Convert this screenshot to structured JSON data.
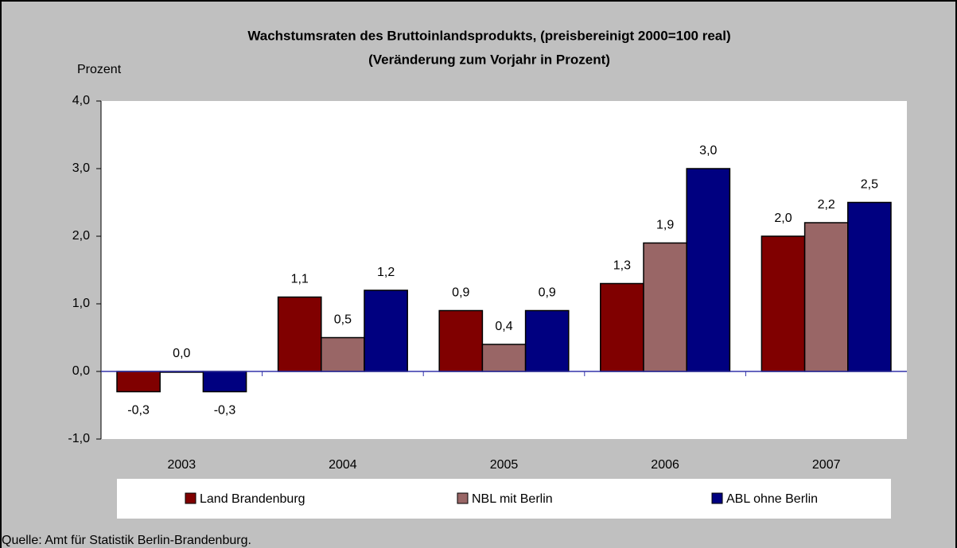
{
  "chart_data": {
    "type": "bar",
    "title": "Wachstumsraten des Bruttoinlandsprodukts, (preisbereinigt 2000=100 real)",
    "subtitle": "(Veränderung zum Vorjahr in Prozent)",
    "y_label": "Prozent",
    "source": "Quelle: Amt für Statistik Berlin-Brandenburg.",
    "categories": [
      "2003",
      "2004",
      "2005",
      "2006",
      "2007"
    ],
    "series": [
      {
        "name": "Land Brandenburg",
        "color": "#800000",
        "values": [
          -0.3,
          1.1,
          0.9,
          1.3,
          2.0
        ],
        "value_labels": [
          "-0,3",
          "1,1",
          "0,9",
          "1,3",
          "2,0"
        ]
      },
      {
        "name": "NBL mit Berlin",
        "color": "#996666",
        "values": [
          0.0,
          0.5,
          0.4,
          1.9,
          2.2
        ],
        "value_labels": [
          "0,0",
          "0,5",
          "0,4",
          "1,9",
          "2,2"
        ]
      },
      {
        "name": "ABL ohne Berlin",
        "color": "#000080",
        "values": [
          -0.3,
          1.2,
          0.9,
          3.0,
          2.5
        ],
        "value_labels": [
          "-0,3",
          "1,2",
          "0,9",
          "3,0",
          "2,5"
        ]
      }
    ],
    "ylim": [
      -1,
      4
    ],
    "yticks": [
      {
        "value": -1,
        "label": "-1,0"
      },
      {
        "value": 0,
        "label": "0,0"
      },
      {
        "value": 1,
        "label": "1,0"
      },
      {
        "value": 2,
        "label": "2,0"
      },
      {
        "value": 3,
        "label": "3,0"
      },
      {
        "value": 4,
        "label": "4,0"
      }
    ],
    "legend": "bottom"
  }
}
